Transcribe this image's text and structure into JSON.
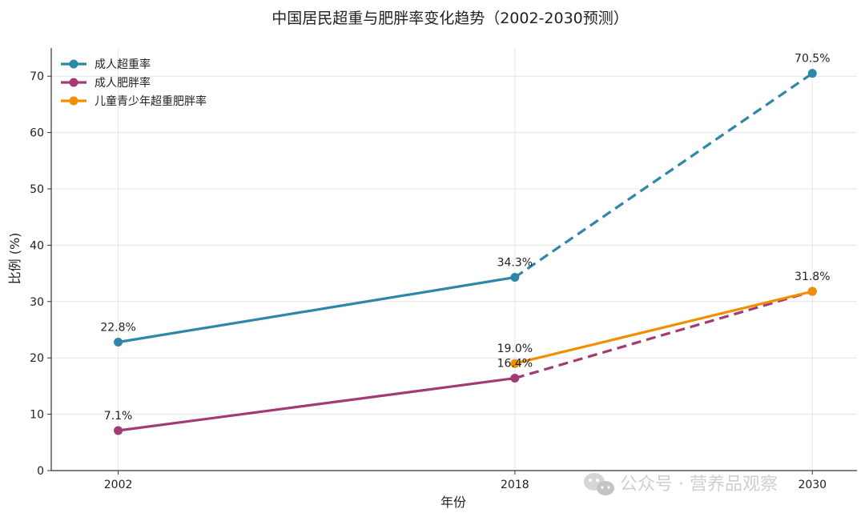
{
  "chart_data": {
    "type": "line",
    "title": "中国居民超重与肥胖率变化趋势（2002-2030预测）",
    "xlabel": "年份",
    "ylabel": "比例 (%)",
    "xlim": [
      1999.3,
      2031.8
    ],
    "ylim": [
      0,
      75
    ],
    "xticks": [
      2002,
      2018,
      2030
    ],
    "xtick_labels": [
      "2002",
      "2018",
      "2030"
    ],
    "yticks": [
      0,
      10,
      20,
      30,
      40,
      50,
      60,
      70
    ],
    "ytick_labels": [
      "0",
      "10",
      "20",
      "30",
      "40",
      "50",
      "60",
      "70"
    ],
    "grid": true,
    "legend_position": "top-left",
    "series": [
      {
        "name": "成人超重率",
        "color": "#2e86a8",
        "points": [
          {
            "x": 2002,
            "y": 22.8,
            "label": "22.8%",
            "segment_after": "solid"
          },
          {
            "x": 2018,
            "y": 34.3,
            "label": "34.3%",
            "segment_after": "dashed"
          },
          {
            "x": 2030,
            "y": 70.5,
            "label": "70.5%"
          }
        ]
      },
      {
        "name": "成人肥胖率",
        "color": "#a23b72",
        "points": [
          {
            "x": 2002,
            "y": 7.1,
            "label": "7.1%",
            "segment_after": "solid"
          },
          {
            "x": 2018,
            "y": 16.4,
            "label": "16.4%",
            "segment_after": "dashed"
          },
          {
            "x": 2030,
            "y": 31.8,
            "label": ""
          }
        ]
      },
      {
        "name": "儿童青少年超重肥胖率",
        "color": "#f18f01",
        "points": [
          {
            "x": 2018,
            "y": 19.0,
            "label": "19.0%",
            "segment_after": "solid"
          },
          {
            "x": 2030,
            "y": 31.8,
            "label": "31.8%"
          }
        ]
      }
    ]
  },
  "watermark": {
    "icon": "wechat-icon",
    "text": "公众号 · 营养品观察"
  }
}
